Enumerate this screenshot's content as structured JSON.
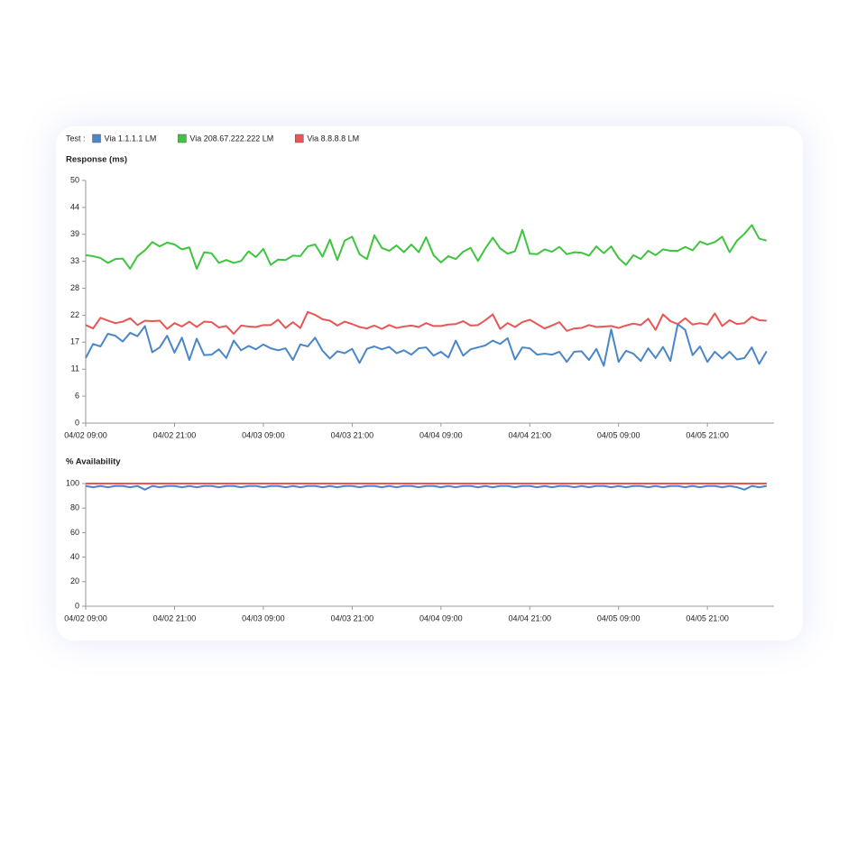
{
  "chart_data": [
    {
      "type": "line",
      "title": "Response (ms)",
      "legend_title": "Test :",
      "x": [
        "04/02 09:00",
        "04/02 10:00",
        "04/02 11:00",
        "04/02 12:00",
        "04/02 13:00",
        "04/02 14:00",
        "04/02 15:00",
        "04/02 16:00",
        "04/02 17:00",
        "04/02 18:00",
        "04/02 19:00",
        "04/02 20:00",
        "04/02 21:00",
        "04/02 22:00",
        "04/02 23:00",
        "04/03 00:00",
        "04/03 01:00",
        "04/03 02:00",
        "04/03 03:00",
        "04/03 04:00",
        "04/03 05:00",
        "04/03 06:00",
        "04/03 07:00",
        "04/03 08:00",
        "04/03 09:00",
        "04/03 10:00",
        "04/03 11:00",
        "04/03 12:00",
        "04/03 13:00",
        "04/03 14:00",
        "04/03 15:00",
        "04/03 16:00",
        "04/03 17:00",
        "04/03 18:00",
        "04/03 19:00",
        "04/03 20:00",
        "04/03 21:00",
        "04/03 22:00",
        "04/03 23:00",
        "04/04 00:00",
        "04/04 01:00",
        "04/04 02:00",
        "04/04 03:00",
        "04/04 04:00",
        "04/04 05:00",
        "04/04 06:00",
        "04/04 07:00",
        "04/04 08:00",
        "04/04 09:00",
        "04/04 10:00",
        "04/04 11:00",
        "04/04 12:00",
        "04/04 13:00",
        "04/04 14:00",
        "04/04 15:00",
        "04/04 16:00",
        "04/04 17:00",
        "04/04 18:00",
        "04/04 19:00",
        "04/04 20:00",
        "04/04 21:00",
        "04/04 22:00",
        "04/04 23:00",
        "04/05 00:00",
        "04/05 01:00",
        "04/05 02:00",
        "04/05 03:00",
        "04/05 04:00",
        "04/05 05:00",
        "04/05 06:00",
        "04/05 07:00",
        "04/05 08:00",
        "04/05 09:00",
        "04/05 10:00",
        "04/05 11:00",
        "04/05 12:00",
        "04/05 13:00",
        "04/05 14:00",
        "04/05 15:00",
        "04/05 16:00",
        "04/05 17:00",
        "04/05 18:00",
        "04/05 19:00",
        "04/05 20:00",
        "04/05 21:00",
        "04/05 22:00",
        "04/05 23:00",
        "04/06 00:00",
        "04/06 01:00",
        "04/06 02:00",
        "04/06 03:00",
        "04/06 04:00",
        "04/06 05:00"
      ],
      "series": [
        {
          "name": "Via 1.1.1.1 LM",
          "color": "#4a86c8",
          "values": [
            13.4,
            16.3,
            15.8,
            18.4,
            18.0,
            16.8,
            18.6,
            17.9,
            20.0,
            14.6,
            15.6,
            18.0,
            14.5,
            17.6,
            13.0,
            17.4,
            14.0,
            14.1,
            15.2,
            13.4,
            17.0,
            15.0,
            15.9,
            15.2,
            16.2,
            15.4,
            15.0,
            15.4,
            13.0,
            16.2,
            15.8,
            17.6,
            14.9,
            13.3,
            14.8,
            14.4,
            15.3,
            12.4,
            15.3,
            15.8,
            15.2,
            15.7,
            14.4,
            15.0,
            14.1,
            15.4,
            15.6,
            13.9,
            14.7,
            13.5,
            17.0,
            13.9,
            15.2,
            15.6,
            16.0,
            17.0,
            16.3,
            17.5,
            13.1,
            15.6,
            15.4,
            14.1,
            14.3,
            14.1,
            14.7,
            12.6,
            14.7,
            14.8,
            13.0,
            15.3,
            11.8,
            19.3,
            12.6,
            14.9,
            14.3,
            12.8,
            15.4,
            13.4,
            15.7,
            12.8,
            20.4,
            19.2,
            14.0,
            15.8,
            12.6,
            14.7,
            13.3,
            14.7,
            13.1,
            13.4,
            15.6,
            12.2,
            14.8
          ]
        },
        {
          "name": "Via 208.67.222.222 LM",
          "color": "#3ec43e",
          "values": [
            34.6,
            34.4,
            34.0,
            33.0,
            33.8,
            33.9,
            31.8,
            34.4,
            35.6,
            37.3,
            36.4,
            37.2,
            36.8,
            35.8,
            36.2,
            31.8,
            35.2,
            35.0,
            33.0,
            33.6,
            33.0,
            33.4,
            35.4,
            34.2,
            35.9,
            32.6,
            33.7,
            33.6,
            34.5,
            34.4,
            36.4,
            36.8,
            34.3,
            37.8,
            33.6,
            37.6,
            38.4,
            34.8,
            33.8,
            38.7,
            36.1,
            35.5,
            36.6,
            35.2,
            36.8,
            35.2,
            38.3,
            34.6,
            33.1,
            34.4,
            33.8,
            35.3,
            36.1,
            33.4,
            36.0,
            38.2,
            36.0,
            34.9,
            35.4,
            39.8,
            34.9,
            34.8,
            35.8,
            35.3,
            36.3,
            34.8,
            35.2,
            35.1,
            34.5,
            36.4,
            35.0,
            36.4,
            34.0,
            32.6,
            34.6,
            33.8,
            35.5,
            34.6,
            35.8,
            35.5,
            35.5,
            36.3,
            35.6,
            37.4,
            36.8,
            37.3,
            38.4,
            35.2,
            37.6,
            39.0,
            40.8,
            38.0,
            37.6
          ]
        },
        {
          "name": "Via 8.8.8.8 LM",
          "color": "#e85656",
          "values": [
            20.2,
            19.5,
            21.7,
            21.1,
            20.6,
            20.9,
            21.6,
            20.2,
            21.1,
            21.0,
            21.1,
            19.4,
            20.6,
            19.9,
            20.9,
            19.8,
            20.9,
            20.8,
            19.7,
            20.0,
            18.4,
            20.1,
            19.9,
            19.8,
            20.2,
            20.2,
            21.3,
            19.6,
            20.8,
            19.6,
            22.9,
            22.3,
            21.4,
            21.1,
            20.1,
            20.9,
            20.4,
            19.8,
            19.5,
            20.1,
            19.4,
            20.2,
            19.6,
            19.9,
            20.1,
            19.8,
            20.6,
            20.0,
            20.0,
            20.3,
            20.4,
            21.0,
            20.1,
            20.2,
            21.2,
            22.4,
            19.4,
            20.6,
            19.8,
            20.8,
            21.3,
            20.4,
            19.5,
            20.1,
            20.8,
            19.0,
            19.5,
            19.6,
            20.2,
            19.8,
            19.9,
            20.0,
            19.6,
            20.1,
            20.5,
            20.2,
            21.5,
            19.2,
            22.4,
            21.0,
            20.4,
            21.6,
            20.3,
            20.6,
            20.3,
            22.6,
            20.0,
            21.2,
            20.4,
            20.6,
            21.9,
            21.2,
            21.1
          ]
        }
      ],
      "xlim": [
        "04/02 09:00",
        "04/06 06:00"
      ],
      "xticks": [
        "04/02 09:00",
        "04/02 21:00",
        "04/03 09:00",
        "04/03 21:00",
        "04/04 09:00",
        "04/04 21:00",
        "04/05 09:00",
        "04/05 21:00"
      ],
      "ylim": [
        0,
        50
      ],
      "yticks": [
        0,
        {
          "value": 5.56,
          "label": "6"
        },
        {
          "value": 11.11,
          "label": "11"
        },
        {
          "value": 16.67,
          "label": "17"
        },
        {
          "value": 22.22,
          "label": "22"
        },
        {
          "value": 27.78,
          "label": "28"
        },
        {
          "value": 33.33,
          "label": "33"
        },
        {
          "value": 38.89,
          "label": "39"
        },
        {
          "value": 44.44,
          "label": "44"
        },
        50
      ]
    },
    {
      "type": "line",
      "title": "% Availability",
      "x": [
        "04/02 09:00",
        "04/02 10:00",
        "04/02 11:00",
        "04/02 12:00",
        "04/02 13:00",
        "04/02 14:00",
        "04/02 15:00",
        "04/02 16:00",
        "04/02 17:00",
        "04/02 18:00",
        "04/02 19:00",
        "04/02 20:00",
        "04/02 21:00",
        "04/02 22:00",
        "04/02 23:00",
        "04/03 00:00",
        "04/03 01:00",
        "04/03 02:00",
        "04/03 03:00",
        "04/03 04:00",
        "04/03 05:00",
        "04/03 06:00",
        "04/03 07:00",
        "04/03 08:00",
        "04/03 09:00",
        "04/03 10:00",
        "04/03 11:00",
        "04/03 12:00",
        "04/03 13:00",
        "04/03 14:00",
        "04/03 15:00",
        "04/03 16:00",
        "04/03 17:00",
        "04/03 18:00",
        "04/03 19:00",
        "04/03 20:00",
        "04/03 21:00",
        "04/03 22:00",
        "04/03 23:00",
        "04/04 00:00",
        "04/04 01:00",
        "04/04 02:00",
        "04/04 03:00",
        "04/04 04:00",
        "04/04 05:00",
        "04/04 06:00",
        "04/04 07:00",
        "04/04 08:00",
        "04/04 09:00",
        "04/04 10:00",
        "04/04 11:00",
        "04/04 12:00",
        "04/04 13:00",
        "04/04 14:00",
        "04/04 15:00",
        "04/04 16:00",
        "04/04 17:00",
        "04/04 18:00",
        "04/04 19:00",
        "04/04 20:00",
        "04/04 21:00",
        "04/04 22:00",
        "04/04 23:00",
        "04/05 00:00",
        "04/05 01:00",
        "04/05 02:00",
        "04/05 03:00",
        "04/05 04:00",
        "04/05 05:00",
        "04/05 06:00",
        "04/05 07:00",
        "04/05 08:00",
        "04/05 09:00",
        "04/05 10:00",
        "04/05 11:00",
        "04/05 12:00",
        "04/05 13:00",
        "04/05 14:00",
        "04/05 15:00",
        "04/05 16:00",
        "04/05 17:00",
        "04/05 18:00",
        "04/05 19:00",
        "04/05 20:00",
        "04/05 21:00",
        "04/05 22:00",
        "04/05 23:00",
        "04/06 00:00",
        "04/06 01:00",
        "04/06 02:00",
        "04/06 03:00",
        "04/06 04:00",
        "04/06 05:00"
      ],
      "series": [
        {
          "color": "#3ec43e",
          "values": [
            100,
            100,
            100,
            100,
            100,
            100,
            100,
            100,
            100,
            100,
            100,
            100,
            100,
            100,
            100,
            100,
            100,
            100,
            100,
            100,
            100,
            100,
            100,
            100,
            100,
            100,
            100,
            100,
            100,
            100,
            100,
            100,
            100,
            100,
            100,
            100,
            100,
            100,
            100,
            100,
            100,
            100,
            100,
            100,
            100,
            100,
            100,
            100,
            100,
            100,
            100,
            100,
            100,
            100,
            100,
            100,
            100,
            100,
            100,
            100,
            100,
            100,
            100,
            100,
            100,
            100,
            100,
            100,
            100,
            100,
            100,
            100,
            100,
            100,
            100,
            100,
            100,
            100,
            100,
            100,
            100,
            100,
            100,
            100,
            100,
            100,
            100,
            100,
            100,
            100,
            100,
            100,
            100
          ]
        },
        {
          "color": "#e85656",
          "values": [
            100,
            100,
            100,
            100,
            100,
            100,
            100,
            100,
            100,
            100,
            100,
            100,
            100,
            100,
            100,
            100,
            100,
            100,
            100,
            100,
            100,
            100,
            100,
            100,
            100,
            100,
            100,
            100,
            100,
            100,
            100,
            100,
            100,
            100,
            100,
            100,
            100,
            100,
            100,
            100,
            100,
            100,
            100,
            100,
            100,
            100,
            100,
            100,
            100,
            100,
            100,
            100,
            100,
            100,
            100,
            100,
            100,
            100,
            100,
            100,
            100,
            100,
            100,
            100,
            100,
            100,
            100,
            100,
            100,
            100,
            100,
            100,
            100,
            100,
            100,
            100,
            100,
            100,
            100,
            100,
            100,
            100,
            100,
            100,
            100,
            100,
            100,
            100,
            100,
            100,
            100,
            100,
            100
          ]
        },
        {
          "color": "#4a86c8",
          "values": [
            98,
            97,
            98,
            97,
            98,
            98,
            97,
            98,
            95,
            98,
            97,
            98,
            98,
            97,
            98,
            97,
            98,
            98,
            97,
            98,
            98,
            97,
            98,
            98,
            97,
            98,
            98,
            97,
            98,
            97,
            98,
            98,
            97,
            98,
            97,
            98,
            98,
            97,
            98,
            98,
            97,
            98,
            97,
            98,
            98,
            97,
            98,
            98,
            97,
            98,
            97,
            98,
            98,
            97,
            98,
            97,
            98,
            98,
            97,
            98,
            98,
            97,
            98,
            97,
            98,
            98,
            97,
            98,
            97,
            98,
            98,
            97,
            98,
            97,
            98,
            98,
            97,
            98,
            97,
            98,
            98,
            97,
            98,
            97,
            98,
            98,
            97,
            98,
            97,
            95,
            98,
            97,
            98
          ]
        }
      ],
      "xlim": [
        "04/02 09:00",
        "04/06 06:00"
      ],
      "xticks": [
        "04/02 09:00",
        "04/02 21:00",
        "04/03 09:00",
        "04/03 21:00",
        "04/04 09:00",
        "04/04 21:00",
        "04/05 09:00",
        "04/05 21:00"
      ],
      "ylim": [
        0,
        100
      ],
      "yticks": [
        0,
        20,
        40,
        60,
        80,
        100
      ]
    }
  ]
}
